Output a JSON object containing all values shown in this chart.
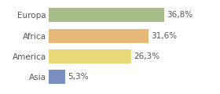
{
  "categories": [
    "Europa",
    "Africa",
    "America",
    "Asia"
  ],
  "values": [
    36.8,
    31.6,
    26.3,
    5.3
  ],
  "labels": [
    "36,8%",
    "31,6%",
    "26,3%",
    "5,3%"
  ],
  "bar_colors": [
    "#a8bc8a",
    "#e8b87a",
    "#e8d87a",
    "#7a8fc0"
  ],
  "background_color": "#ffffff",
  "xlim": [
    0,
    46
  ],
  "bar_height": 0.68,
  "label_fontsize": 7.5,
  "category_fontsize": 7.5,
  "grid_color": "#dddddd",
  "text_color": "#555555"
}
